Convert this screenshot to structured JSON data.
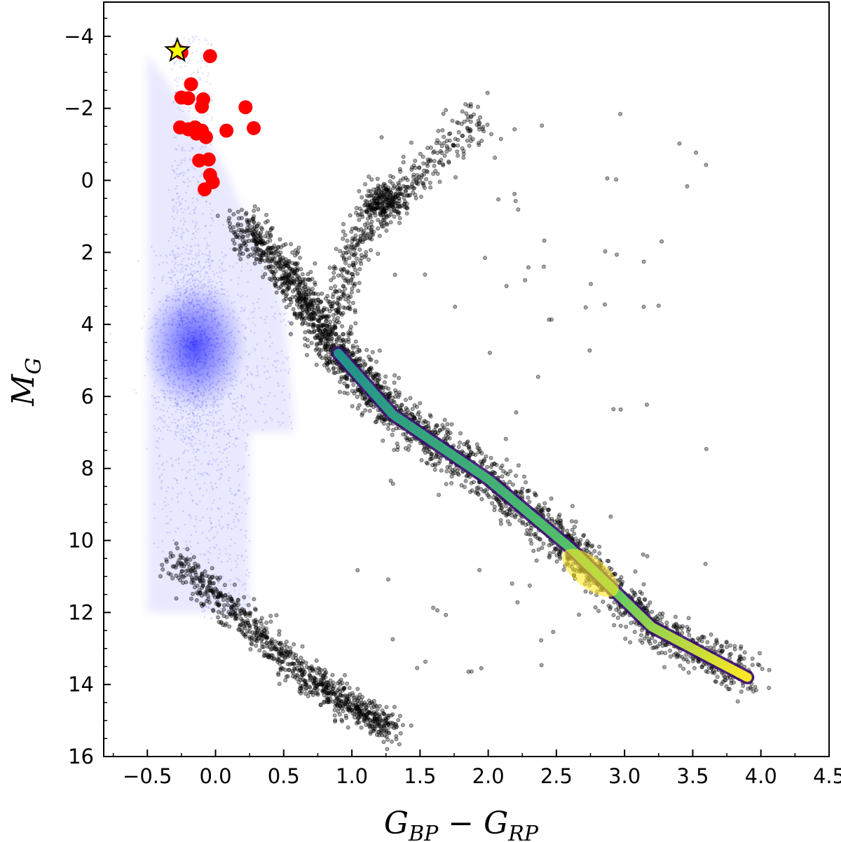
{
  "chart_data": {
    "type": "scatter",
    "title": "",
    "xlabel": {
      "main": "G",
      "sub1": "BP",
      "op": " − ",
      "main2": "G",
      "sub2": "RP"
    },
    "ylabel": {
      "main": "M",
      "sub": "G"
    },
    "xlim": [
      -0.82,
      4.5
    ],
    "ylim": [
      16,
      -4.95
    ],
    "y_inverted": true,
    "grid": false,
    "x_ticks": [
      -0.5,
      0.0,
      0.5,
      1.0,
      1.5,
      2.0,
      2.5,
      3.0,
      3.5,
      4.0,
      4.5
    ],
    "x_tick_labels": [
      "−0.5",
      "0.0",
      "0.5",
      "1.0",
      "1.5",
      "2.0",
      "2.5",
      "3.0",
      "3.5",
      "4.0",
      "4.5"
    ],
    "y_ticks": [
      -4,
      -2,
      0,
      2,
      4,
      6,
      8,
      10,
      12,
      14,
      16
    ],
    "y_tick_labels": [
      "−4",
      "−2",
      "0",
      "2",
      "4",
      "6",
      "8",
      "10",
      "12",
      "14",
      "16"
    ],
    "colors": {
      "background_stars": "#0000ff",
      "field_stars": "#000000",
      "density_low": "#3b0f70",
      "density_mid": "#21918c",
      "density_high": "#fde725",
      "red_markers": "#ff0000",
      "highlight_star": "#ffff00"
    },
    "series": [
      {
        "marker": "circle",
        "color": "#ff0000",
        "points": [
          [
            -0.25,
            -3.55
          ],
          [
            -0.18,
            -2.67
          ],
          [
            -0.2,
            -2.28
          ],
          [
            -0.09,
            -2.25
          ],
          [
            -0.1,
            -2.05
          ],
          [
            -0.15,
            -1.47
          ],
          [
            -0.2,
            -1.42
          ],
          [
            -0.1,
            -1.38
          ],
          [
            -0.07,
            -1.2
          ],
          [
            -0.14,
            -1.3
          ],
          [
            0.08,
            -1.38
          ],
          [
            0.22,
            -2.03
          ],
          [
            0.28,
            -1.45
          ],
          [
            -0.12,
            -0.55
          ],
          [
            -0.05,
            -0.58
          ],
          [
            -0.04,
            -0.15
          ],
          [
            -0.02,
            0.05
          ],
          [
            -0.08,
            0.25
          ],
          [
            -0.28,
            -3.6
          ],
          [
            -0.25,
            -2.3
          ],
          [
            -0.04,
            -3.45
          ],
          [
            -0.26,
            -1.47
          ]
        ]
      },
      {
        "marker": "star",
        "color": "#ffff00",
        "points": [
          [
            -0.28,
            -3.6
          ]
        ]
      }
    ],
    "regions": {
      "white_dwarf_sequence": [
        [
          -0.3,
          10.5
        ],
        [
          0.2,
          12.2
        ],
        [
          0.6,
          13.6
        ],
        [
          1.0,
          14.6
        ],
        [
          1.3,
          15.3
        ]
      ],
      "main_sequence": [
        [
          0.2,
          1.2
        ],
        [
          0.6,
          3.0
        ],
        [
          0.9,
          4.8
        ],
        [
          1.3,
          6.5
        ],
        [
          2.0,
          8.3
        ],
        [
          2.6,
          10.2
        ],
        [
          3.2,
          12.4
        ],
        [
          3.9,
          13.8
        ]
      ],
      "red_giant_branch": [
        [
          0.9,
          3.8
        ],
        [
          1.0,
          2.2
        ],
        [
          1.1,
          1.2
        ],
        [
          1.3,
          0.5
        ],
        [
          1.6,
          -0.5
        ],
        [
          2.0,
          -1.8
        ]
      ],
      "red_clump": [
        [
          1.25,
          0.5
        ]
      ]
    }
  }
}
